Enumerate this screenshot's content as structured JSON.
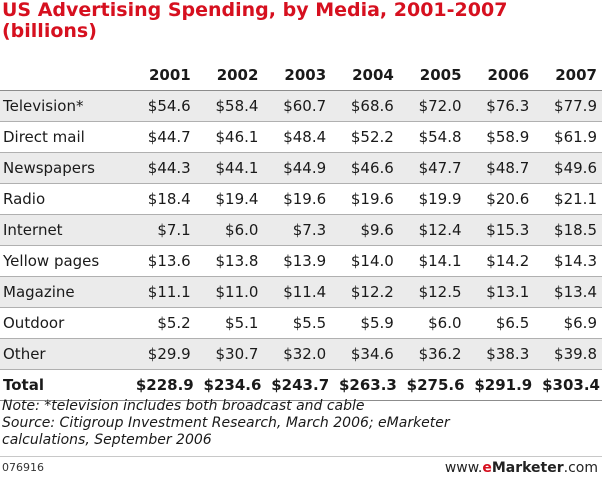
{
  "chart_data": {
    "type": "table",
    "title": "US Advertising Spending, by Media, 2001-2007",
    "subtitle": "(billions)",
    "columns": [
      "2001",
      "2002",
      "2003",
      "2004",
      "2005",
      "2006",
      "2007"
    ],
    "rows": [
      {
        "label": "Television*",
        "values": [
          "$54.6",
          "$58.4",
          "$60.7",
          "$68.6",
          "$72.0",
          "$76.3",
          "$77.9"
        ]
      },
      {
        "label": "Direct mail",
        "values": [
          "$44.7",
          "$46.1",
          "$48.4",
          "$52.2",
          "$54.8",
          "$58.9",
          "$61.9"
        ]
      },
      {
        "label": "Newspapers",
        "values": [
          "$44.3",
          "$44.1",
          "$44.9",
          "$46.6",
          "$47.7",
          "$48.7",
          "$49.6"
        ]
      },
      {
        "label": "Radio",
        "values": [
          "$18.4",
          "$19.4",
          "$19.6",
          "$19.6",
          "$19.9",
          "$20.6",
          "$21.1"
        ]
      },
      {
        "label": "Internet",
        "values": [
          "$7.1",
          "$6.0",
          "$7.3",
          "$9.6",
          "$12.4",
          "$15.3",
          "$18.5"
        ]
      },
      {
        "label": "Yellow pages",
        "values": [
          "$13.6",
          "$13.8",
          "$13.9",
          "$14.0",
          "$14.1",
          "$14.2",
          "$14.3"
        ]
      },
      {
        "label": "Magazine",
        "values": [
          "$11.1",
          "$11.0",
          "$11.4",
          "$12.2",
          "$12.5",
          "$13.1",
          "$13.4"
        ]
      },
      {
        "label": "Outdoor",
        "values": [
          "$5.2",
          "$5.1",
          "$5.5",
          "$5.9",
          "$6.0",
          "$6.5",
          "$6.9"
        ]
      },
      {
        "label": "Other",
        "values": [
          "$29.9",
          "$30.7",
          "$32.0",
          "$34.6",
          "$36.2",
          "$38.3",
          "$39.8"
        ]
      }
    ],
    "total": {
      "label": "Total",
      "values": [
        "$228.9",
        "$234.6",
        "$243.7",
        "$263.3",
        "$275.6",
        "$291.9",
        "$303.4"
      ]
    }
  },
  "notes": {
    "line1": "Note: *television includes both broadcast and cable",
    "line2": "Source: Citigroup Investment Research, March 2006; eMarketer",
    "line3": "calculations, September 2006"
  },
  "footer": {
    "code": "076916",
    "brand_prefix": "www.",
    "brand_e": "e",
    "brand_name": "Marketer",
    "brand_suffix": ".com"
  },
  "colors": {
    "title": "#d6101f",
    "row_shade": "#ebebeb",
    "rule": "#8c8c8c"
  }
}
